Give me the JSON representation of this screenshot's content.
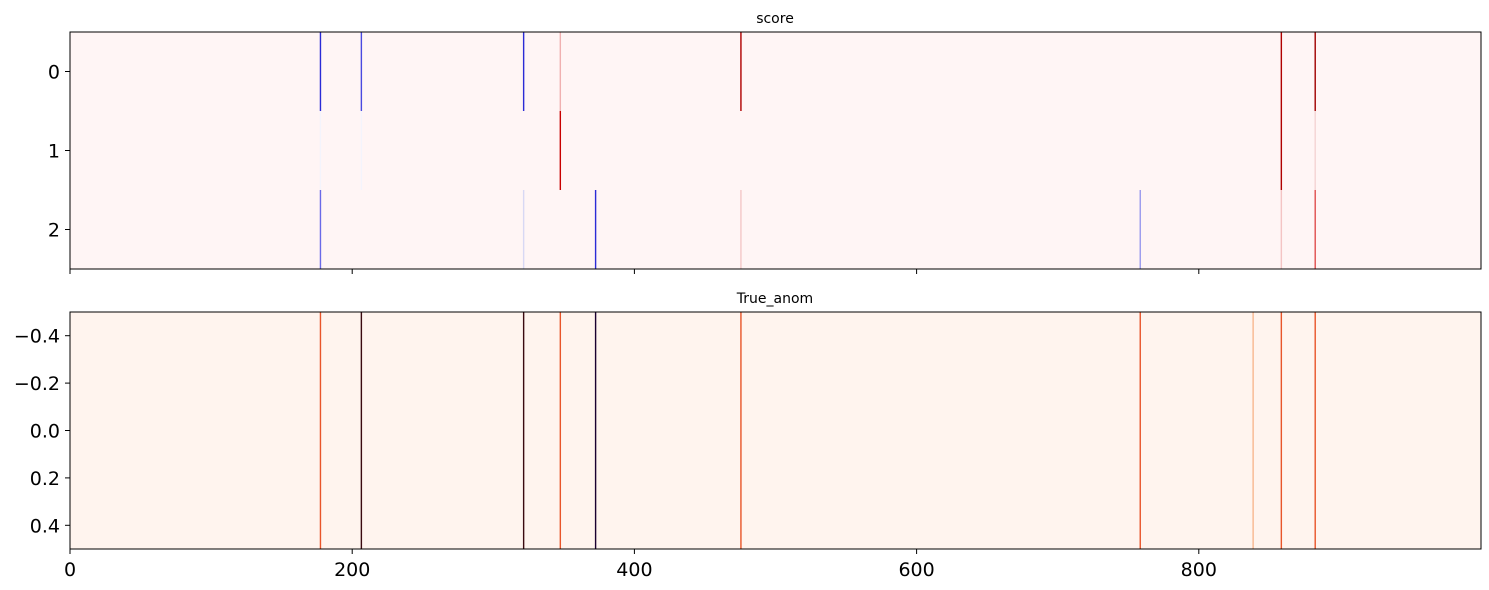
{
  "chart_data": [
    {
      "type": "heatmap",
      "title": "score",
      "colormap": "bwr",
      "xlim": [
        0,
        999
      ],
      "ylim": [
        2.5,
        -0.5
      ],
      "yticks": [
        0,
        1,
        2
      ],
      "ytick_labels": [
        "0",
        "1",
        "2"
      ],
      "xticks": [
        0,
        200,
        400,
        600,
        800
      ],
      "xtick_labels": [],
      "background_color": "#fff5f5",
      "rows": [
        {
          "row": 0,
          "marks": [
            {
              "x": 177,
              "color": "#2b2bd6"
            },
            {
              "x": 206,
              "color": "#4a4ae0"
            },
            {
              "x": 321,
              "color": "#2b2bd6"
            },
            {
              "x": 347,
              "color": "#f0b0b0"
            },
            {
              "x": 475,
              "color": "#b00000"
            },
            {
              "x": 858,
              "color": "#b00000"
            },
            {
              "x": 882,
              "color": "#a00000"
            }
          ]
        },
        {
          "row": 1,
          "marks": [
            {
              "x": 177,
              "color": "#f4f4fc"
            },
            {
              "x": 206,
              "color": "#f4f4fc"
            },
            {
              "x": 347,
              "color": "#c80000"
            },
            {
              "x": 858,
              "color": "#b00000"
            },
            {
              "x": 882,
              "color": "#f4d4d4"
            }
          ]
        },
        {
          "row": 2,
          "marks": [
            {
              "x": 177,
              "color": "#6a6ae8"
            },
            {
              "x": 321,
              "color": "#d8d8f4"
            },
            {
              "x": 372,
              "color": "#2b2bd6"
            },
            {
              "x": 475,
              "color": "#f4c8c8"
            },
            {
              "x": 758,
              "color": "#9a9aee"
            },
            {
              "x": 858,
              "color": "#f4c4c4"
            },
            {
              "x": 882,
              "color": "#e05050"
            }
          ]
        }
      ]
    },
    {
      "type": "heatmap",
      "title": "True_anom",
      "colormap": "Reds",
      "xlim": [
        0,
        999
      ],
      "ylim": [
        -0.5,
        0.5
      ],
      "yticks": [
        -0.4,
        -0.2,
        0.0,
        0.2,
        0.4
      ],
      "ytick_labels": [
        "−0.4",
        "−0.2",
        "0.0",
        "0.2",
        "0.4"
      ],
      "xticks": [
        0,
        200,
        400,
        600,
        800
      ],
      "xtick_labels": [
        "0",
        "200",
        "400",
        "600",
        "800"
      ],
      "background_color": "#fff4ee",
      "marks": [
        {
          "x": 177,
          "color": "#e8552a"
        },
        {
          "x": 206,
          "color": "#3a0a10"
        },
        {
          "x": 321,
          "color": "#3a0a10"
        },
        {
          "x": 347,
          "color": "#e8552a"
        },
        {
          "x": 372,
          "color": "#1a0030"
        },
        {
          "x": 475,
          "color": "#e8552a"
        },
        {
          "x": 758,
          "color": "#e8552a"
        },
        {
          "x": 838,
          "color": "#f8b890"
        },
        {
          "x": 858,
          "color": "#e8552a"
        },
        {
          "x": 882,
          "color": "#e8552a"
        }
      ]
    }
  ]
}
